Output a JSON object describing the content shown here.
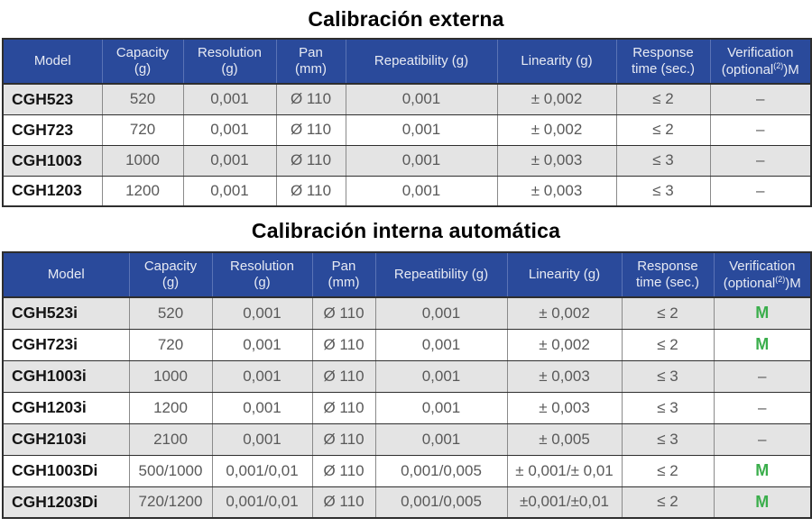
{
  "colors_note": "visual accents used on screen",
  "accent_colors": {
    "header_blue": "#2a4a9b",
    "verification_green": "#3aae4b",
    "row_alternate_gray": "#e4e4e4"
  },
  "tables": [
    {
      "title": "Calibración externa",
      "headers": [
        {
          "line1": "Model",
          "line2": ""
        },
        {
          "line1": "Capacity",
          "line2": "(g)"
        },
        {
          "line1": "Resolution",
          "line2": "(g)"
        },
        {
          "line1": "Pan",
          "line2": "(mm)"
        },
        {
          "line1": "Repeatibility (g)",
          "line2": ""
        },
        {
          "line1": "Linearity (g)",
          "line2": ""
        },
        {
          "line1": "Response",
          "line2": "time (sec.)"
        },
        {
          "line1": "Verification",
          "line2_prefix": "(optional",
          "line2_sup": "(2)",
          "line2_suffix": ")M"
        }
      ],
      "rows": [
        [
          "CGH523",
          "520",
          "0,001",
          "Ø 110",
          "0,001",
          "± 0,002",
          "≤ 2",
          "–"
        ],
        [
          "CGH723",
          "720",
          "0,001",
          "Ø 110",
          "0,001",
          "± 0,002",
          "≤ 2",
          "–"
        ],
        [
          "CGH1003",
          "1000",
          "0,001",
          "Ø 110",
          "0,001",
          "± 0,003",
          "≤ 3",
          "–"
        ],
        [
          "CGH1203",
          "1200",
          "0,001",
          "Ø 110",
          "0,001",
          "± 0,003",
          "≤ 3",
          "–"
        ]
      ]
    },
    {
      "title": "Calibración interna automática",
      "headers": [
        {
          "line1": "Model",
          "line2": ""
        },
        {
          "line1": "Capacity",
          "line2": "(g)"
        },
        {
          "line1": "Resolution",
          "line2": "(g)"
        },
        {
          "line1": "Pan",
          "line2": "(mm)"
        },
        {
          "line1": "Repeatibility (g)",
          "line2": ""
        },
        {
          "line1": "Linearity (g)",
          "line2": ""
        },
        {
          "line1": "Response",
          "line2": "time (sec.)"
        },
        {
          "line1": "Verification",
          "line2_prefix": "(optional",
          "line2_sup": "(2)",
          "line2_suffix": ")M"
        }
      ],
      "rows": [
        [
          "CGH523i",
          "520",
          "0,001",
          "Ø 110",
          "0,001",
          "± 0,002",
          "≤ 2",
          "M"
        ],
        [
          "CGH723i",
          "720",
          "0,001",
          "Ø 110",
          "0,001",
          "± 0,002",
          "≤ 2",
          "M"
        ],
        [
          "CGH1003i",
          "1000",
          "0,001",
          "Ø 110",
          "0,001",
          "± 0,003",
          "≤ 3",
          "–"
        ],
        [
          "CGH1203i",
          "1200",
          "0,001",
          "Ø 110",
          "0,001",
          "± 0,003",
          "≤ 3",
          "–"
        ],
        [
          "CGH2103i",
          "2100",
          "0,001",
          "Ø 110",
          "0,001",
          "± 0,005",
          "≤ 3",
          "–"
        ],
        [
          "CGH1003Di",
          "500/1000",
          "0,001/0,01",
          "Ø 110",
          "0,001/0,005",
          "± 0,001/± 0,01",
          "≤ 2",
          "M"
        ],
        [
          "CGH1203Di",
          "720/1200",
          "0,001/0,01",
          "Ø 110",
          "0,001/0,005",
          "±0,001/±0,01",
          "≤ 2",
          "M"
        ]
      ]
    }
  ]
}
